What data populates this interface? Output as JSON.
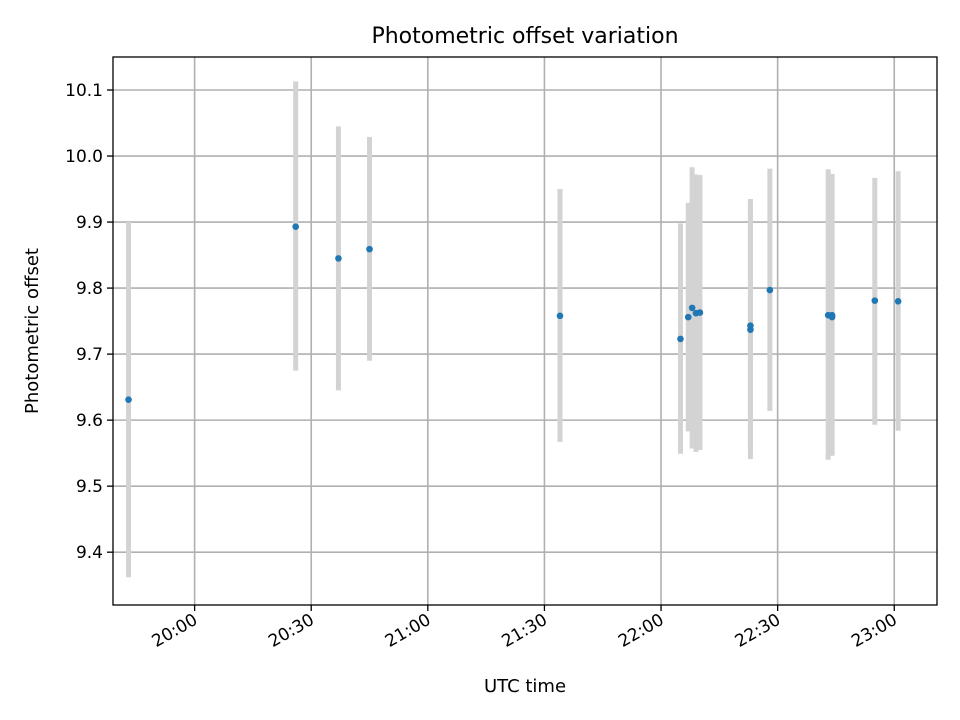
{
  "chart_data": {
    "type": "scatter",
    "title": "Photometric offset variation",
    "xlabel": "UTC time",
    "ylabel": "Photometric offset",
    "x_ticks": [
      "20:00",
      "20:30",
      "21:00",
      "21:30",
      "22:00",
      "22:30",
      "23:00"
    ],
    "y_ticks": [
      "9.4",
      "9.5",
      "9.6",
      "9.7",
      "9.8",
      "9.9",
      "10.0",
      "10.1"
    ],
    "xlim": [
      "19:39",
      "23:11"
    ],
    "ylim": [
      9.32,
      10.15
    ],
    "grid": true,
    "marker_color": "#1f77b4",
    "errorbar_color": "#d3d3d3",
    "points": [
      {
        "x": "19:43",
        "y": 9.631,
        "ylow": 9.362,
        "yhigh": 9.9
      },
      {
        "x": "20:26",
        "y": 9.893,
        "ylow": 9.675,
        "yhigh": 10.113
      },
      {
        "x": "20:37",
        "y": 9.845,
        "ylow": 9.645,
        "yhigh": 10.045
      },
      {
        "x": "20:45",
        "y": 9.859,
        "ylow": 9.69,
        "yhigh": 10.029
      },
      {
        "x": "21:34",
        "y": 9.758,
        "ylow": 9.567,
        "yhigh": 9.95
      },
      {
        "x": "22:05",
        "y": 9.723,
        "ylow": 9.549,
        "yhigh": 9.898
      },
      {
        "x": "22:07",
        "y": 9.756,
        "ylow": 9.583,
        "yhigh": 9.929
      },
      {
        "x": "22:08",
        "y": 9.77,
        "ylow": 9.557,
        "yhigh": 9.983
      },
      {
        "x": "22:09",
        "y": 9.762,
        "ylow": 9.552,
        "yhigh": 9.972
      },
      {
        "x": "22:10",
        "y": 9.763,
        "ylow": 9.555,
        "yhigh": 9.971
      },
      {
        "x": "22:23",
        "y": 9.737,
        "ylow": 9.541,
        "yhigh": 9.935
      },
      {
        "x": "22:23",
        "y": 9.743,
        "ylow": 9.552,
        "yhigh": 9.933
      },
      {
        "x": "22:28",
        "y": 9.797,
        "ylow": 9.614,
        "yhigh": 9.981
      },
      {
        "x": "22:43",
        "y": 9.759,
        "ylow": 9.54,
        "yhigh": 9.98
      },
      {
        "x": "22:44",
        "y": 9.756,
        "ylow": 9.546,
        "yhigh": 9.973
      },
      {
        "x": "22:44",
        "y": 9.759,
        "ylow": 9.547,
        "yhigh": 9.972
      },
      {
        "x": "22:55",
        "y": 9.781,
        "ylow": 9.593,
        "yhigh": 9.967
      },
      {
        "x": "23:01",
        "y": 9.78,
        "ylow": 9.584,
        "yhigh": 9.977
      }
    ]
  }
}
